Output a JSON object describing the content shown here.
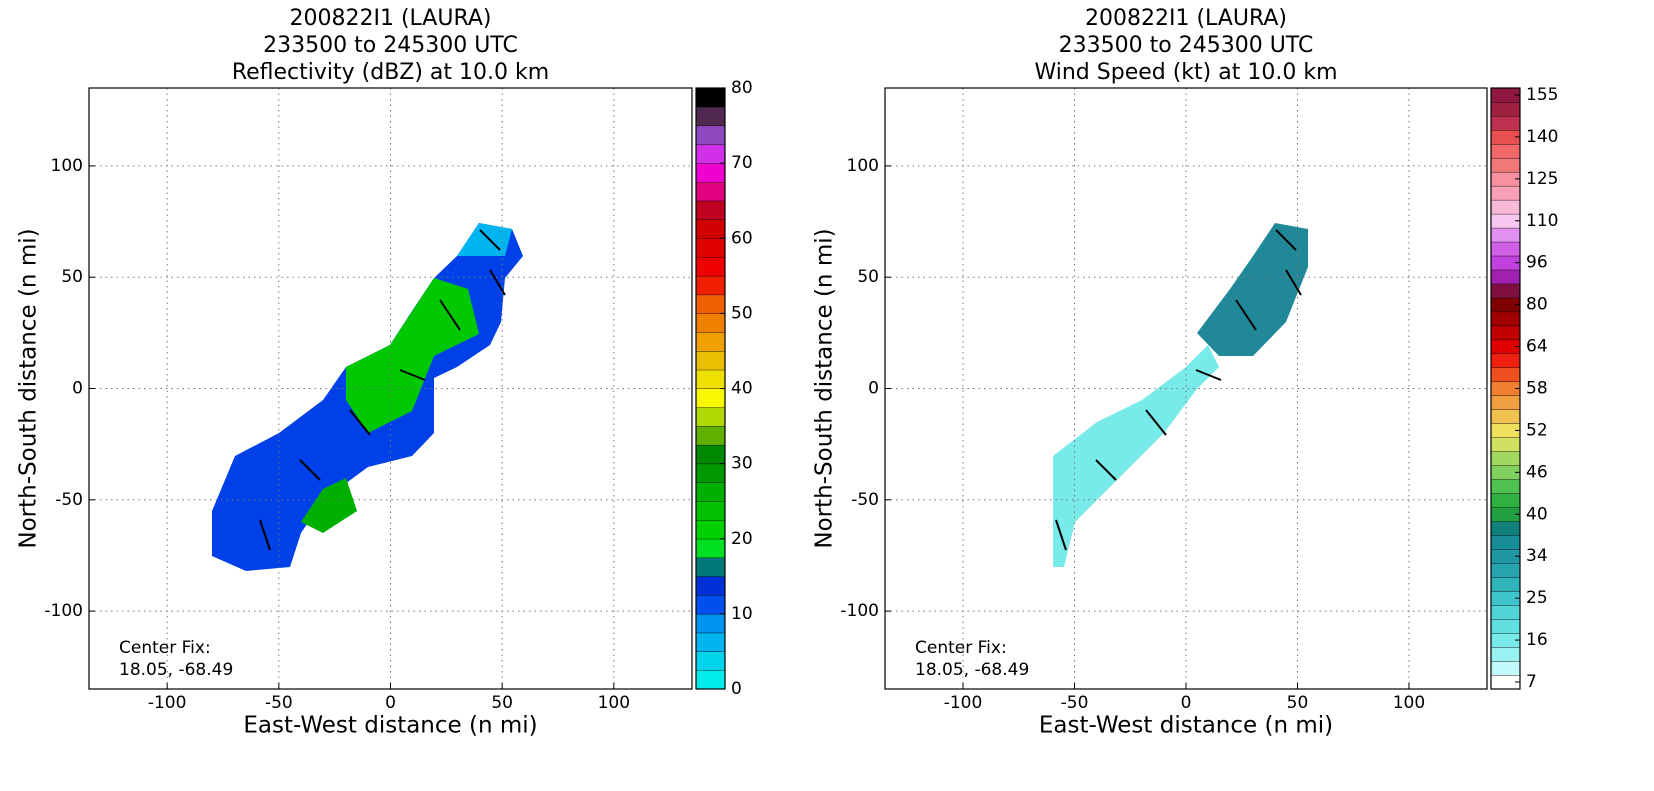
{
  "chart_data": [
    {
      "type": "heatmap",
      "title": [
        "200822I1 (LAURA)",
        "233500 to 245300 UTC",
        "Reflectivity (dBZ) at 10.0 km"
      ],
      "xlabel": "East-West distance (n mi)",
      "ylabel": "North-South distance (n mi)",
      "xlim": [
        -135,
        135
      ],
      "ylim": [
        -135,
        135
      ],
      "xticks": [
        -100,
        -50,
        0,
        50,
        100
      ],
      "yticks": [
        -100,
        -50,
        0,
        50,
        100
      ],
      "grid": true,
      "annotation": [
        "Center Fix:",
        "18.05, -68.49"
      ],
      "colorbar": {
        "scale": "linear",
        "lim": [
          0,
          80
        ],
        "ticks": [
          0,
          10,
          20,
          30,
          40,
          50,
          60,
          70,
          80
        ],
        "colors": [
          "#00ecec",
          "#00d4ec",
          "#00b4f0",
          "#0094f0",
          "#0050f0",
          "#0030d8",
          "#007878",
          "#00e020",
          "#00d000",
          "#00c000",
          "#00b000",
          "#009800",
          "#008800",
          "#60b000",
          "#b0d800",
          "#f8f800",
          "#f0e000",
          "#e8c000",
          "#f0a000",
          "#f08000",
          "#f06000",
          "#f02000",
          "#f00000",
          "#e00000",
          "#d00000",
          "#c00020",
          "#e00080",
          "#f000d0",
          "#d030e8",
          "#9048c0",
          "#502850",
          "#000000"
        ]
      }
    },
    {
      "type": "heatmap",
      "title": [
        "200822I1 (LAURA)",
        "233500 to 245300 UTC",
        "Wind Speed (kt) at 10.0 km"
      ],
      "xlabel": "East-West distance (n mi)",
      "ylabel": "North-South distance (n mi)",
      "xlim": [
        -135,
        135
      ],
      "ylim": [
        -135,
        135
      ],
      "xticks": [
        -100,
        -50,
        0,
        50,
        100
      ],
      "yticks": [
        -100,
        -50,
        0,
        50,
        100
      ],
      "grid": true,
      "annotation": [
        "Center Fix:",
        "18.05, -68.49"
      ],
      "colorbar": {
        "scale": "index",
        "tick_every": 3,
        "ticks": [
          7,
          16,
          25,
          34,
          40,
          46,
          52,
          58,
          64,
          80,
          96,
          110,
          125,
          140,
          155
        ],
        "colors": [
          "#ffffff",
          "#c0fafa",
          "#98f2f2",
          "#78eaea",
          "#60e0e0",
          "#50d4d8",
          "#40c4cc",
          "#30b4bc",
          "#28a4b0",
          "#2098a4",
          "#188c98",
          "#10807c",
          "#20a040",
          "#30b040",
          "#50c050",
          "#80d060",
          "#a0d860",
          "#d0e060",
          "#f0e060",
          "#f0c050",
          "#f0a040",
          "#f08030",
          "#f05020",
          "#f02010",
          "#e00000",
          "#c00000",
          "#a00000",
          "#800000",
          "#801040",
          "#a020b0",
          "#c040e0",
          "#d060e8",
          "#e090f0",
          "#f8c8f0",
          "#f8b8d8",
          "#f8a0b8",
          "#f890a0",
          "#f07878",
          "#f06868",
          "#e85050",
          "#c03050",
          "#a02040",
          "#901840"
        ]
      }
    }
  ]
}
